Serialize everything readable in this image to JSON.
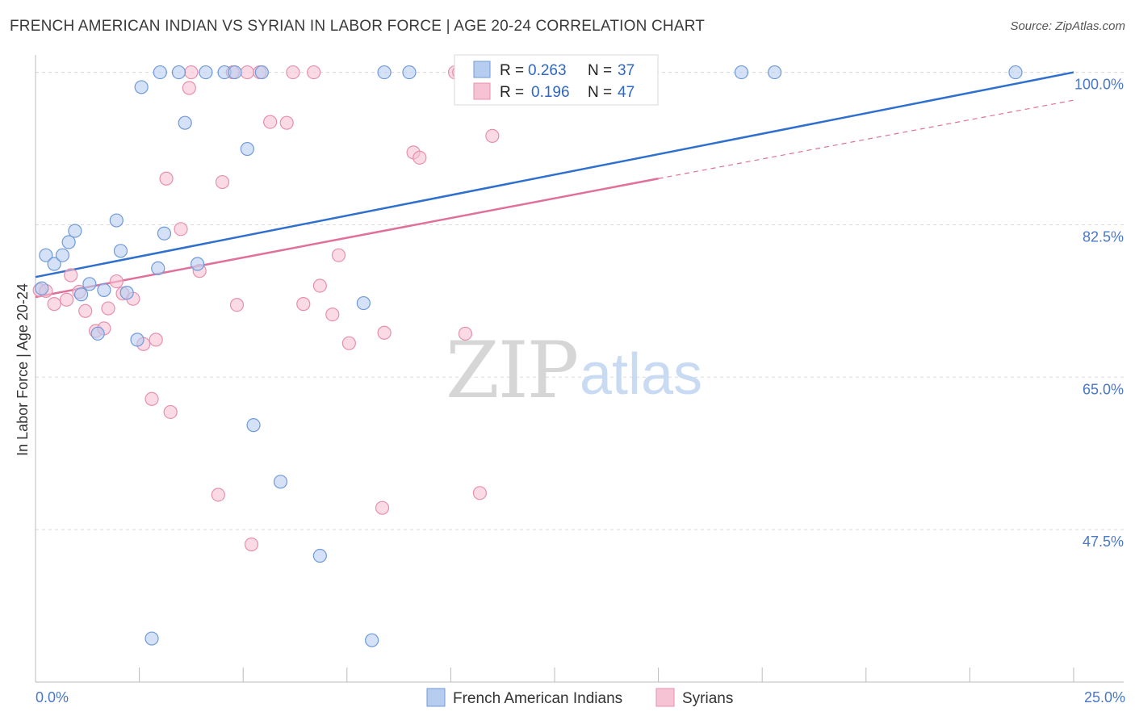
{
  "title": "FRENCH AMERICAN INDIAN VS SYRIAN IN LABOR FORCE | AGE 20-24 CORRELATION CHART",
  "source": "Source: ZipAtlas.com",
  "watermark": {
    "zip": "ZIP",
    "atlas": "atlas"
  },
  "colors": {
    "blue_fill": "#b7cdf0",
    "blue_stroke": "#6f9ad8",
    "blue_line": "#2f6fce",
    "pink_fill": "#f6c3d4",
    "pink_stroke": "#e68fae",
    "pink_line": "#e0709a",
    "grid": "#dcdcdc",
    "tick_label": "#4a78c8"
  },
  "legend": {
    "rows": [
      {
        "r_label": "R = ",
        "r_value": "0.263",
        "n_label": "N = ",
        "n_value": "37"
      },
      {
        "r_label": "R = ",
        "r_value": "0.196",
        "n_label": "N = ",
        "n_value": "47"
      }
    ]
  },
  "chart_data": {
    "type": "scatter",
    "title": "FRENCH AMERICAN INDIAN VS SYRIAN IN LABOR FORCE | AGE 20-24 CORRELATION CHART",
    "xlabel": "",
    "ylabel": "In Labor Force | Age 20-24",
    "xlim": [
      0,
      25
    ],
    "ylim": [
      30,
      102
    ],
    "x_tick_labels": [
      "0.0%",
      "25.0%"
    ],
    "y_ticks": [
      47.5,
      65.0,
      82.5,
      100.0
    ],
    "y_tick_labels": [
      "47.5%",
      "65.0%",
      "82.5%",
      "100.0%"
    ],
    "grid": true,
    "legend_position": "top-center",
    "series": [
      {
        "name": "French American Indians",
        "color": "#6f9ad8",
        "points": [
          [
            0.25,
            79.0
          ],
          [
            0.45,
            78.0
          ],
          [
            0.65,
            79.0
          ],
          [
            0.8,
            80.5
          ],
          [
            0.95,
            81.8
          ],
          [
            1.3,
            75.7
          ],
          [
            1.65,
            75.0
          ],
          [
            2.05,
            79.5
          ],
          [
            1.95,
            83.0
          ],
          [
            2.2,
            74.7
          ],
          [
            2.45,
            69.3
          ],
          [
            2.55,
            98.3
          ],
          [
            2.95,
            77.5
          ],
          [
            3.0,
            100.0
          ],
          [
            3.1,
            81.5
          ],
          [
            3.45,
            100.0
          ],
          [
            3.6,
            94.2
          ],
          [
            3.9,
            78.0
          ],
          [
            4.1,
            100.0
          ],
          [
            4.55,
            100.0
          ],
          [
            4.8,
            100.0
          ],
          [
            5.1,
            91.2
          ],
          [
            5.25,
            59.5
          ],
          [
            5.45,
            100.0
          ],
          [
            5.9,
            53.0
          ],
          [
            6.85,
            44.5
          ],
          [
            7.9,
            73.5
          ],
          [
            8.4,
            100.0
          ],
          [
            9.0,
            100.0
          ],
          [
            17.0,
            100.0
          ],
          [
            17.8,
            100.0
          ],
          [
            23.6,
            100.0
          ],
          [
            2.8,
            35.0
          ],
          [
            8.1,
            34.8
          ],
          [
            1.5,
            70.0
          ],
          [
            1.1,
            74.5
          ],
          [
            0.15,
            75.2
          ]
        ]
      },
      {
        "name": "Syrians",
        "color": "#e68fae",
        "points": [
          [
            0.1,
            75.0
          ],
          [
            0.25,
            74.9
          ],
          [
            0.45,
            73.4
          ],
          [
            0.75,
            73.9
          ],
          [
            0.85,
            76.7
          ],
          [
            1.05,
            74.8
          ],
          [
            1.2,
            72.6
          ],
          [
            1.45,
            70.3
          ],
          [
            1.65,
            70.6
          ],
          [
            1.75,
            72.9
          ],
          [
            1.95,
            76.0
          ],
          [
            2.1,
            74.6
          ],
          [
            2.35,
            74.0
          ],
          [
            2.6,
            68.8
          ],
          [
            2.8,
            62.5
          ],
          [
            2.9,
            69.3
          ],
          [
            3.15,
            87.8
          ],
          [
            3.25,
            61.0
          ],
          [
            3.7,
            98.2
          ],
          [
            3.75,
            100.0
          ],
          [
            3.5,
            82.0
          ],
          [
            3.95,
            77.2
          ],
          [
            4.4,
            51.5
          ],
          [
            4.5,
            87.4
          ],
          [
            4.75,
            100.0
          ],
          [
            4.85,
            73.3
          ],
          [
            5.1,
            100.0
          ],
          [
            5.2,
            45.8
          ],
          [
            5.4,
            100.0
          ],
          [
            5.65,
            94.3
          ],
          [
            6.05,
            94.2
          ],
          [
            6.2,
            100.0
          ],
          [
            6.45,
            73.4
          ],
          [
            6.7,
            100.0
          ],
          [
            6.85,
            75.5
          ],
          [
            7.15,
            72.2
          ],
          [
            7.3,
            79.0
          ],
          [
            7.55,
            68.9
          ],
          [
            8.4,
            70.1
          ],
          [
            8.35,
            50.0
          ],
          [
            9.1,
            90.8
          ],
          [
            9.25,
            90.2
          ],
          [
            10.1,
            100.0
          ],
          [
            10.35,
            70.0
          ],
          [
            10.7,
            51.7
          ],
          [
            11.0,
            92.7
          ],
          [
            10.2,
            100.0
          ]
        ]
      }
    ],
    "trend_lines": [
      {
        "series": "French American Indians",
        "from": [
          0,
          76.5
        ],
        "to": [
          25,
          100.0
        ]
      },
      {
        "series": "Syrians",
        "from": [
          0,
          74.2
        ],
        "to": [
          15,
          87.8
        ],
        "dashed_to": [
          25,
          96.8
        ]
      }
    ]
  }
}
